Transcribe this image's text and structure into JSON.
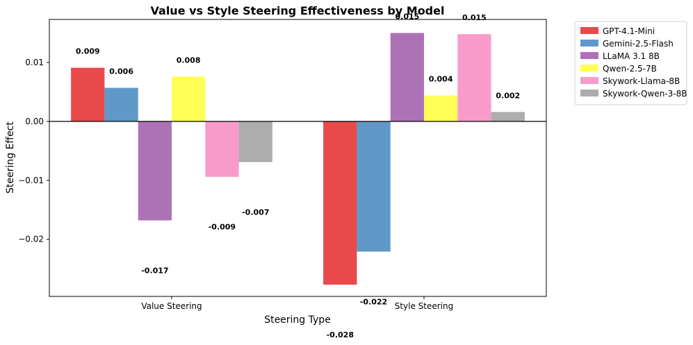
{
  "chart_data": {
    "type": "bar",
    "title": "Value vs Style Steering Effectiveness by Model",
    "xlabel": "Steering Type",
    "ylabel": "Steering Effect",
    "categories": [
      "Value Steering",
      "Style Steering"
    ],
    "ylim": [
      -0.0297,
      0.0173
    ],
    "yticks": [
      -0.02,
      -0.01,
      0.0,
      0.01
    ],
    "ytick_labels": [
      "−0.02",
      "−0.01",
      "0.00",
      "0.01"
    ],
    "legend_position": "outside-top-right",
    "zero_line": true,
    "series": [
      {
        "name": "GPT-4.1-Mini",
        "color": "#e84a4c",
        "values": [
          0.0091,
          -0.0277
        ],
        "labels": [
          "0.009",
          "-0.028"
        ]
      },
      {
        "name": "Gemini-2.5-Flash",
        "color": "#6098c8",
        "values": [
          0.0057,
          -0.0221
        ],
        "labels": [
          "0.006",
          "-0.022"
        ]
      },
      {
        "name": "LLaMA 3.1 8B",
        "color": "#ad72b5",
        "values": [
          -0.0168,
          0.015
        ],
        "labels": [
          "-0.017",
          "0.015"
        ]
      },
      {
        "name": "Qwen-2.5-7B",
        "color": "#ffff55",
        "values": [
          0.0076,
          0.0044
        ],
        "labels": [
          "0.008",
          "0.004"
        ]
      },
      {
        "name": "Skywork-Llama-8B",
        "color": "#f89bcb",
        "values": [
          -0.0094,
          0.0148
        ],
        "labels": [
          "-0.009",
          "0.015"
        ]
      },
      {
        "name": "Skywork-Qwen-3-8B",
        "color": "#adadad",
        "values": [
          -0.0069,
          0.0016
        ],
        "labels": [
          "-0.007",
          "0.002"
        ]
      }
    ]
  }
}
